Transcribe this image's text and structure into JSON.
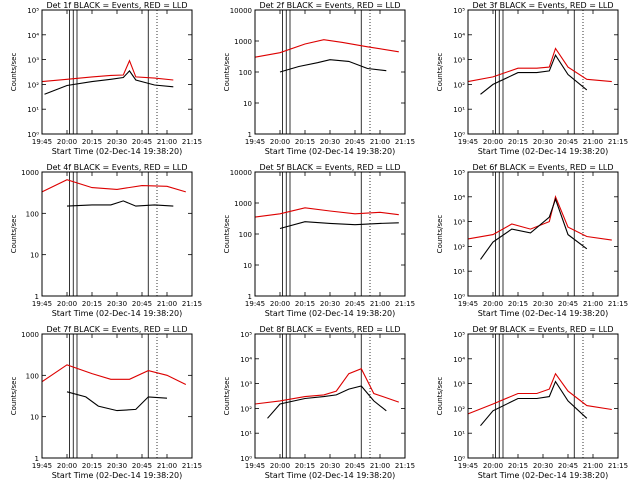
{
  "chart_data": [
    {
      "title": "Det 1f BLACK = Events, RED = LLD",
      "ylabel": "Counts/sec",
      "xlabel": "Start Time (02-Dec-14 19:38:20)",
      "yscale": "log",
      "y_range": [
        1,
        100000
      ],
      "y_ticks": [
        "10⁰",
        "10¹",
        "10²",
        "10³",
        "10⁴",
        "10⁵"
      ],
      "x_ticks": [
        "19:45",
        "20:00",
        "20:15",
        "20:30",
        "20:45",
        "21:00",
        "21:15"
      ],
      "red": [
        [
          0,
          130
        ],
        [
          20,
          160
        ],
        [
          40,
          200
        ],
        [
          55,
          230
        ],
        [
          65,
          240
        ],
        [
          70,
          900
        ],
        [
          75,
          200
        ],
        [
          90,
          180
        ],
        [
          105,
          150
        ]
      ],
      "black": [
        [
          2,
          40
        ],
        [
          20,
          90
        ],
        [
          40,
          130
        ],
        [
          55,
          160
        ],
        [
          65,
          190
        ],
        [
          70,
          350
        ],
        [
          75,
          150
        ],
        [
          90,
          95
        ],
        [
          105,
          80
        ]
      ]
    },
    {
      "title": "Det 2f BLACK = Events, RED = LLD",
      "ylabel": "Counts/sec",
      "xlabel": "Start Time (02-Dec-14 19:38:20)",
      "yscale": "log",
      "y_range": [
        1,
        10000
      ],
      "y_ticks": [
        "1",
        "10",
        "100",
        "1000",
        "10000"
      ],
      "x_ticks": [
        "19:45",
        "20:00",
        "20:15",
        "20:30",
        "20:45",
        "21:00",
        "21:15"
      ],
      "red": [
        [
          0,
          300
        ],
        [
          20,
          420
        ],
        [
          40,
          800
        ],
        [
          55,
          1100
        ],
        [
          70,
          900
        ],
        [
          90,
          650
        ],
        [
          115,
          450
        ]
      ],
      "black": [
        [
          20,
          100
        ],
        [
          35,
          150
        ],
        [
          50,
          200
        ],
        [
          60,
          250
        ],
        [
          75,
          220
        ],
        [
          90,
          130
        ],
        [
          105,
          110
        ]
      ]
    },
    {
      "title": "Det 3f BLACK = Events, RED = LLD",
      "ylabel": "Counts/sec",
      "xlabel": "Start Time (02-Dec-14 19:38:20)",
      "yscale": "log",
      "y_range": [
        1,
        100000
      ],
      "y_ticks": [
        "10⁰",
        "10¹",
        "10²",
        "10³",
        "10⁴",
        "10⁵"
      ],
      "x_ticks": [
        "19:45",
        "20:00",
        "20:15",
        "20:30",
        "20:45",
        "21:00",
        "21:15"
      ],
      "red": [
        [
          0,
          130
        ],
        [
          20,
          200
        ],
        [
          40,
          450
        ],
        [
          55,
          450
        ],
        [
          65,
          500
        ],
        [
          70,
          2800
        ],
        [
          80,
          500
        ],
        [
          95,
          160
        ],
        [
          115,
          130
        ]
      ],
      "black": [
        [
          10,
          40
        ],
        [
          20,
          100
        ],
        [
          40,
          300
        ],
        [
          55,
          300
        ],
        [
          65,
          350
        ],
        [
          70,
          1500
        ],
        [
          80,
          250
        ],
        [
          95,
          60
        ]
      ]
    },
    {
      "title": "Det 4f BLACK = Events, RED = LLD",
      "ylabel": "Counts/sec",
      "xlabel": "Start Time (02-Dec-14 19:38:20)",
      "yscale": "log",
      "y_range": [
        1,
        1000
      ],
      "y_ticks": [
        "1",
        "10",
        "100",
        "1000"
      ],
      "x_ticks": [
        "19:45",
        "20:00",
        "20:15",
        "20:30",
        "20:45",
        "21:00",
        "21:15"
      ],
      "red": [
        [
          0,
          330
        ],
        [
          20,
          650
        ],
        [
          40,
          420
        ],
        [
          60,
          380
        ],
        [
          80,
          470
        ],
        [
          100,
          450
        ],
        [
          115,
          330
        ]
      ],
      "black": [
        [
          20,
          150
        ],
        [
          40,
          160
        ],
        [
          55,
          160
        ],
        [
          65,
          200
        ],
        [
          75,
          150
        ],
        [
          90,
          160
        ],
        [
          105,
          150
        ]
      ]
    },
    {
      "title": "Det 5f BLACK = Events, RED = LLD",
      "ylabel": "Counts/sec",
      "xlabel": "Start Time (02-Dec-14 19:38:20)",
      "yscale": "log",
      "y_range": [
        1,
        10000
      ],
      "y_ticks": [
        "1",
        "10",
        "100",
        "1000",
        "10000"
      ],
      "x_ticks": [
        "19:45",
        "20:00",
        "20:15",
        "20:30",
        "20:45",
        "21:00",
        "21:15"
      ],
      "red": [
        [
          0,
          350
        ],
        [
          20,
          450
        ],
        [
          40,
          700
        ],
        [
          60,
          550
        ],
        [
          80,
          450
        ],
        [
          100,
          500
        ],
        [
          115,
          420
        ]
      ],
      "black": [
        [
          20,
          150
        ],
        [
          40,
          250
        ],
        [
          60,
          220
        ],
        [
          80,
          200
        ],
        [
          100,
          220
        ],
        [
          115,
          230
        ]
      ]
    },
    {
      "title": "Det 6f BLACK = Events, RED = LLD",
      "ylabel": "Counts/sec",
      "xlabel": "Start Time (02-Dec-14 19:38:20)",
      "yscale": "log",
      "y_range": [
        1,
        100000
      ],
      "y_ticks": [
        "10⁰",
        "10¹",
        "10²",
        "10³",
        "10⁴",
        "10⁵"
      ],
      "x_ticks": [
        "19:45",
        "20:00",
        "20:15",
        "20:30",
        "20:45",
        "21:00",
        "21:15"
      ],
      "red": [
        [
          0,
          200
        ],
        [
          20,
          300
        ],
        [
          35,
          800
        ],
        [
          50,
          500
        ],
        [
          65,
          1000
        ],
        [
          70,
          10000
        ],
        [
          80,
          600
        ],
        [
          95,
          250
        ],
        [
          115,
          180
        ]
      ],
      "black": [
        [
          10,
          30
        ],
        [
          20,
          150
        ],
        [
          35,
          500
        ],
        [
          50,
          350
        ],
        [
          65,
          1500
        ],
        [
          70,
          8000
        ],
        [
          80,
          300
        ],
        [
          95,
          80
        ]
      ]
    },
    {
      "title": "Det 7f BLACK = Events, RED = LLD",
      "ylabel": "Counts/sec",
      "xlabel": "Start Time (02-Dec-14 19:38:20)",
      "yscale": "log",
      "y_range": [
        1,
        1000
      ],
      "y_ticks": [
        "1",
        "10",
        "100",
        "1000"
      ],
      "x_ticks": [
        "19:45",
        "20:00",
        "20:15",
        "20:30",
        "20:45",
        "21:00",
        "21:15"
      ],
      "red": [
        [
          0,
          70
        ],
        [
          20,
          180
        ],
        [
          40,
          110
        ],
        [
          55,
          80
        ],
        [
          70,
          80
        ],
        [
          85,
          130
        ],
        [
          100,
          100
        ],
        [
          115,
          60
        ]
      ],
      "black": [
        [
          20,
          40
        ],
        [
          35,
          30
        ],
        [
          45,
          18
        ],
        [
          60,
          14
        ],
        [
          75,
          15
        ],
        [
          85,
          30
        ],
        [
          100,
          28
        ]
      ]
    },
    {
      "title": "Det 8f BLACK = Events, RED = LLD",
      "ylabel": "Counts/sec",
      "xlabel": "Start Time (02-Dec-14 19:38:20)",
      "yscale": "log",
      "y_range": [
        1,
        100000
      ],
      "y_ticks": [
        "10⁰",
        "10¹",
        "10²",
        "10³",
        "10⁴",
        "10⁵"
      ],
      "x_ticks": [
        "19:45",
        "20:00",
        "20:15",
        "20:30",
        "20:45",
        "21:00",
        "21:15"
      ],
      "red": [
        [
          0,
          150
        ],
        [
          20,
          200
        ],
        [
          40,
          300
        ],
        [
          55,
          350
        ],
        [
          65,
          500
        ],
        [
          75,
          2500
        ],
        [
          85,
          4000
        ],
        [
          95,
          400
        ],
        [
          115,
          180
        ]
      ],
      "black": [
        [
          10,
          40
        ],
        [
          20,
          150
        ],
        [
          40,
          250
        ],
        [
          55,
          300
        ],
        [
          65,
          350
        ],
        [
          75,
          600
        ],
        [
          85,
          800
        ],
        [
          95,
          200
        ],
        [
          105,
          80
        ]
      ]
    },
    {
      "title": "Det 9f BLACK = Events, RED = LLD",
      "ylabel": "Counts/sec",
      "xlabel": "Start Time (02-Dec-14 19:38:20)",
      "yscale": "log",
      "y_range": [
        1,
        100000
      ],
      "y_ticks": [
        "10⁰",
        "10¹",
        "10²",
        "10³",
        "10⁴",
        "10⁵"
      ],
      "x_ticks": [
        "19:45",
        "20:00",
        "20:15",
        "20:30",
        "20:45",
        "21:00",
        "21:15"
      ],
      "red": [
        [
          0,
          60
        ],
        [
          20,
          150
        ],
        [
          40,
          400
        ],
        [
          55,
          400
        ],
        [
          65,
          600
        ],
        [
          70,
          2500
        ],
        [
          80,
          500
        ],
        [
          95,
          130
        ],
        [
          115,
          90
        ]
      ],
      "black": [
        [
          10,
          20
        ],
        [
          20,
          80
        ],
        [
          40,
          250
        ],
        [
          55,
          250
        ],
        [
          65,
          300
        ],
        [
          70,
          1200
        ],
        [
          80,
          200
        ],
        [
          95,
          40
        ]
      ]
    }
  ]
}
